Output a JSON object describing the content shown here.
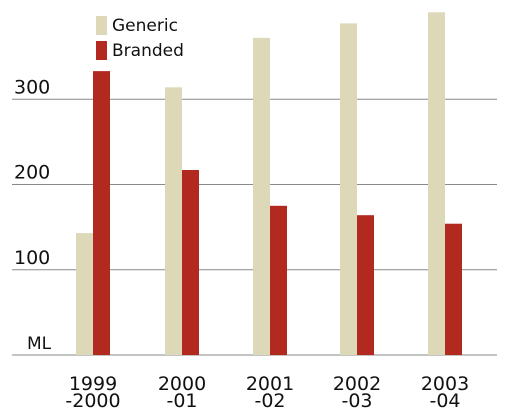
{
  "chart_data": {
    "type": "bar",
    "title": "",
    "xlabel": "",
    "ylabel": "",
    "unit_label": "ML",
    "categories": [
      [
        "1999",
        "-2000"
      ],
      [
        "2000",
        "-01"
      ],
      [
        "2001",
        "-02"
      ],
      [
        "2002",
        "-03"
      ],
      [
        "2003",
        "-04"
      ]
    ],
    "series": [
      {
        "name": "Generic",
        "color": "#ddd8b8",
        "values": [
          143,
          314,
          372,
          389,
          402
        ]
      },
      {
        "name": "Branded",
        "color": "#b22a1f",
        "values": [
          333,
          217,
          175,
          164,
          154
        ]
      }
    ],
    "ylim": [
      0,
      402
    ],
    "yticks": [
      100,
      200,
      300
    ],
    "ytick_labels": [
      "100",
      "200",
      "300"
    ],
    "grid": true,
    "legend_position": "top-left"
  }
}
